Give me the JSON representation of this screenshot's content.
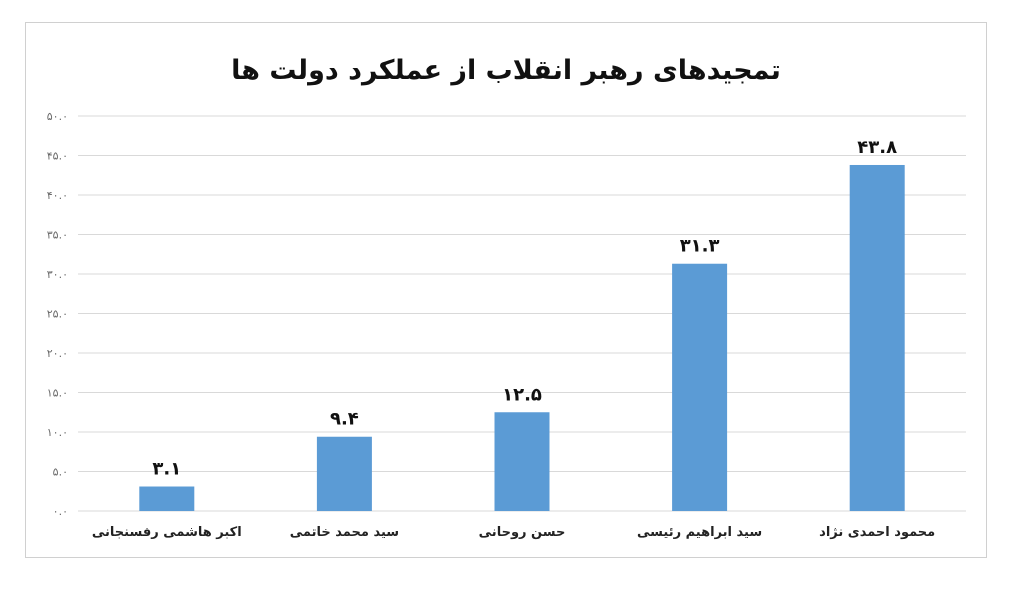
{
  "chart_data": {
    "type": "bar",
    "title": "تمجیدهای رهبر انقلاب از عملکرد دولت ها",
    "xlabel": "",
    "ylabel": "",
    "categories": [
      "اکبر هاشمی رفسنجانی",
      "سید محمد خاتمی",
      "حسن روحانی",
      "سید ابراهیم رئیسی",
      "محمود احمدی نژاد"
    ],
    "values": [
      3.1,
      9.4,
      12.5,
      31.3,
      43.8
    ],
    "data_labels": [
      "۳.۱",
      "۹.۴",
      "۱۲.۵",
      "۳۱.۳",
      "۴۳.۸"
    ],
    "ylim": [
      0,
      50
    ],
    "yticks": [
      0,
      5,
      10,
      15,
      20,
      25,
      30,
      35,
      40,
      45,
      50
    ],
    "ytick_labels": [
      "۰.۰",
      "۵.۰",
      "۱۰.۰",
      "۱۵.۰",
      "۲۰.۰",
      "۲۵.۰",
      "۳۰.۰",
      "۳۵.۰",
      "۴۰.۰",
      "۴۵.۰",
      "۵۰.۰"
    ],
    "grid": true,
    "legend": "none",
    "bar_color": "#5b9bd5"
  }
}
